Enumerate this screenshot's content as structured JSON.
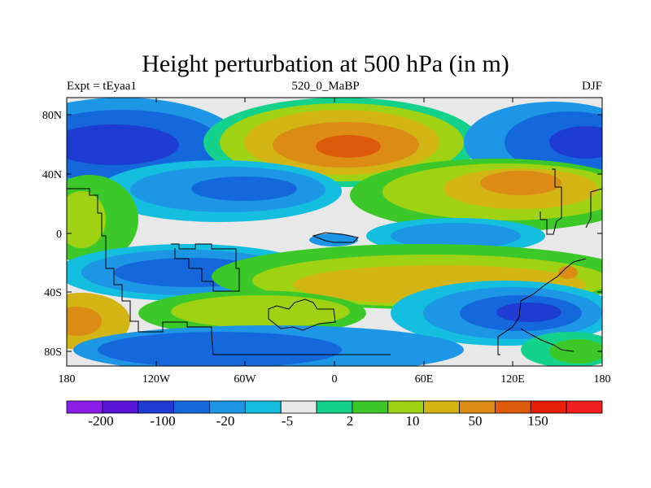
{
  "header": {
    "title": "Height perturbation at 500 hPa (in m)",
    "left": "Expt = tEyaa1",
    "center": "520_0_MaBP",
    "right": "DJF"
  },
  "axes": {
    "x_ticks": [
      "180",
      "120W",
      "60W",
      "0",
      "60E",
      "120E",
      "180"
    ],
    "y_ticks": [
      "80N",
      "40N",
      "0",
      "40S",
      "80S"
    ]
  },
  "colorbar": {
    "labels": [
      "-200",
      "-100",
      "-20",
      "-5",
      "2",
      "10",
      "50",
      "150"
    ],
    "colors": [
      "#8a1ee6",
      "#5a14d8",
      "#1e3cd2",
      "#1468dc",
      "#1e96e6",
      "#14bede",
      "#e8e8e8",
      "#14d28c",
      "#3cc828",
      "#a0d214",
      "#d2b414",
      "#dc8c14",
      "#dc5a0a",
      "#e61e0a",
      "#f01e1e"
    ]
  },
  "palette": {
    "strong_neg": "#1e3cd2",
    "med_neg": "#1468dc",
    "neg": "#1e96e6",
    "weak_neg": "#14bede",
    "zero": "#e8e8e8",
    "weak_pos": "#14d28c",
    "pos": "#3cc828",
    "med_pos": "#a0d214",
    "strong_pos": "#d2b414",
    "orange": "#dc8c14",
    "deep_orange": "#dc5a0a"
  }
}
